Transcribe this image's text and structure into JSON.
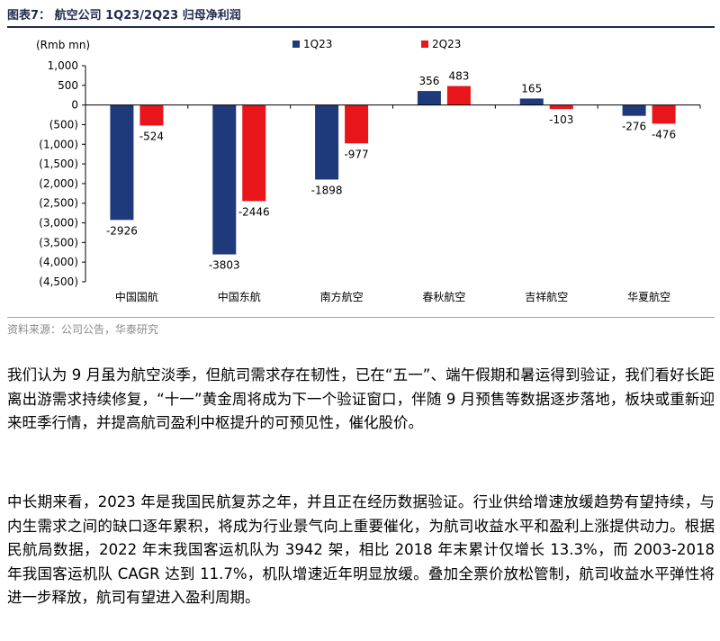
{
  "figure": {
    "title": "图表7：  航空公司 1Q23/2Q23 归母净利润",
    "source": "资料来源：公司公告，华泰研究"
  },
  "chart_data": {
    "type": "bar",
    "unit": "(Rmb mn)",
    "categories": [
      "中国国航",
      "中国东航",
      "南方航空",
      "春秋航空",
      "吉祥航空",
      "华夏航空"
    ],
    "series": [
      {
        "name": "1Q23",
        "color": "#1f3a7a",
        "values": [
          -2926,
          -3803,
          -1898,
          356,
          165,
          -276
        ]
      },
      {
        "name": "2Q23",
        "color": "#e8161b",
        "values": [
          -524,
          -2446,
          -977,
          483,
          -103,
          -476
        ]
      }
    ],
    "ylim": [
      -4500,
      1000
    ],
    "yticks": [
      1000,
      500,
      0,
      -500,
      -1000,
      -1500,
      -2000,
      -2500,
      -3000,
      -3500,
      -4000,
      -4500
    ],
    "ytick_labels": [
      "1,000",
      "500",
      "0",
      "(500)",
      "(1,000)",
      "(1,500)",
      "(2,000)",
      "(2,500)",
      "(3,000)",
      "(3,500)",
      "(4,000)",
      "(4,500)"
    ],
    "legend_position": "top",
    "grid": false
  },
  "paragraphs": [
    "我们认为 9 月虽为航空淡季，但航司需求存在韧性，已在“五一”、端午假期和暑运得到验证，我们看好长距离出游需求持续修复，“十一”黄金周将成为下一个验证窗口，伴随 9 月预售等数据逐步落地，板块或重新迎来旺季行情，并提高航司盈利中枢提升的可预见性，催化股价。",
    "中长期来看，2023 年是我国民航复苏之年，并且正在经历数据验证。行业供给增速放缓趋势有望持续，与内生需求之间的缺口逐年累积，将成为行业景气向上重要催化，为航司收益水平和盈利上涨提供动力。根据民航局数据，2022 年末我国客运机队为 3942 架，相比 2018 年末累计仅增长 13.3%，而 2003-2018 年我国客运机队 CAGR 达到 11.7%，机队增速近年明显放缓。叠加全票价放松管制，航司收益水平弹性将进一步释放，航司有望进入盈利周期。"
  ]
}
